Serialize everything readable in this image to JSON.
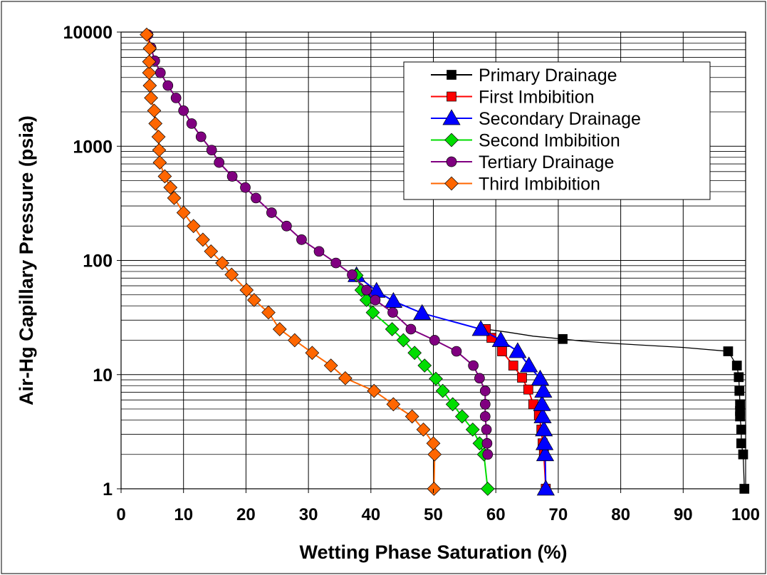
{
  "chart_data": {
    "type": "line",
    "title": "",
    "xlabel": "Wetting Phase Saturation (%)",
    "ylabel": "Air-Hg Capillary Pressure (psia)",
    "xlim": [
      0,
      100
    ],
    "ylim": [
      1,
      10000
    ],
    "yscale": "log",
    "x_ticks": [
      "0",
      "10",
      "20",
      "30",
      "40",
      "50",
      "60",
      "70",
      "80",
      "90",
      "100"
    ],
    "y_ticks": [
      "1",
      "10",
      "100",
      "1000",
      "10000"
    ],
    "grid": true,
    "legend_position": "top-right",
    "series": [
      {
        "name": "Primary Drainage",
        "color": "#000000",
        "marker": "square",
        "points": [
          [
            99.8,
            1
          ],
          [
            99.6,
            2
          ],
          [
            99.3,
            2.5
          ],
          [
            99.3,
            3.3
          ],
          [
            99.1,
            4.3
          ],
          [
            99.1,
            4.8
          ],
          [
            99.1,
            5.5
          ],
          [
            99.0,
            7.2
          ],
          [
            98.9,
            9.5
          ],
          [
            98.6,
            12
          ],
          [
            97.2,
            16
          ],
          [
            90,
            17.3
          ],
          [
            80,
            18.6
          ],
          [
            74,
            19.6
          ],
          [
            70.7,
            20.5
          ],
          [
            66,
            21.7
          ],
          [
            62,
            23.5
          ],
          [
            58.4,
            25
          ]
        ]
      },
      {
        "name": "First Imbibition",
        "color": "#ff0000",
        "marker": "square",
        "points": [
          [
            58.4,
            25
          ],
          [
            59.3,
            21
          ],
          [
            61.0,
            16
          ],
          [
            62.8,
            12
          ],
          [
            64.2,
            9.4
          ],
          [
            65.2,
            7.4
          ],
          [
            66.0,
            5.5
          ],
          [
            66.9,
            4.4
          ],
          [
            67.3,
            3.3
          ],
          [
            67.5,
            2.5
          ],
          [
            67.7,
            2
          ],
          [
            68.0,
            1
          ]
        ]
      },
      {
        "name": "Secondary Drainage",
        "color": "#0000ff",
        "marker": "triangle",
        "points": [
          [
            68.0,
            1
          ],
          [
            67.9,
            2
          ],
          [
            67.8,
            2.5
          ],
          [
            67.7,
            3.3
          ],
          [
            67.5,
            4.3
          ],
          [
            67.4,
            5.5
          ],
          [
            67.6,
            7.2
          ],
          [
            67.1,
            9.2
          ],
          [
            65.3,
            12
          ],
          [
            63.5,
            16
          ],
          [
            60.8,
            20
          ],
          [
            57.6,
            25
          ],
          [
            48.2,
            34.5
          ],
          [
            43.6,
            44
          ],
          [
            40.9,
            54
          ],
          [
            37.7,
            74
          ]
        ]
      },
      {
        "name": "Second Imbibition",
        "color": "#00dd00",
        "marker": "diamond",
        "points": [
          [
            37.7,
            74
          ],
          [
            38.5,
            55
          ],
          [
            39.3,
            45
          ],
          [
            40.3,
            35
          ],
          [
            43.4,
            25
          ],
          [
            45.2,
            20
          ],
          [
            47.0,
            15.5
          ],
          [
            48.6,
            12
          ],
          [
            50.4,
            9.2
          ],
          [
            51.5,
            7.2
          ],
          [
            53.1,
            5.5
          ],
          [
            54.6,
            4.3
          ],
          [
            56.3,
            3.3
          ],
          [
            57.4,
            2.5
          ],
          [
            58.1,
            2
          ],
          [
            58.7,
            1
          ]
        ]
      },
      {
        "name": "Tertiary Drainage",
        "color": "#800080",
        "marker": "circle",
        "points": [
          [
            58.7,
            2
          ],
          [
            58.6,
            2.5
          ],
          [
            58.5,
            3.3
          ],
          [
            58.3,
            4.3
          ],
          [
            58.3,
            5.5
          ],
          [
            58.3,
            7.2
          ],
          [
            57.4,
            9.3
          ],
          [
            56.4,
            12
          ],
          [
            53.7,
            16
          ],
          [
            50.2,
            20
          ],
          [
            46.4,
            25
          ],
          [
            43.5,
            35
          ],
          [
            40.7,
            45
          ],
          [
            39.3,
            55
          ],
          [
            37.0,
            75
          ],
          [
            34.4,
            95
          ],
          [
            31.7,
            120
          ],
          [
            28.9,
            152
          ],
          [
            26.5,
            200
          ],
          [
            24.1,
            262
          ],
          [
            21.6,
            352
          ],
          [
            19.9,
            435
          ],
          [
            17.8,
            545
          ],
          [
            15.7,
            720
          ],
          [
            14.5,
            925
          ],
          [
            12.8,
            1210
          ],
          [
            11.3,
            1580
          ],
          [
            10.0,
            2050
          ],
          [
            8.8,
            2650
          ],
          [
            7.5,
            3400
          ],
          [
            6.3,
            4400
          ],
          [
            5.4,
            5600
          ],
          [
            4.8,
            7300
          ],
          [
            4.3,
            9500
          ]
        ]
      },
      {
        "name": "Third Imbibition",
        "color": "#ff6600",
        "marker": "diamond",
        "points": [
          [
            50.1,
            1
          ],
          [
            50.2,
            2
          ],
          [
            50.0,
            2.5
          ],
          [
            48.4,
            3.3
          ],
          [
            46.6,
            4.3
          ],
          [
            43.6,
            5.5
          ],
          [
            40.5,
            7.2
          ],
          [
            35.9,
            9.3
          ],
          [
            33.6,
            12
          ],
          [
            30.6,
            15.5
          ],
          [
            27.8,
            20
          ],
          [
            25.4,
            25
          ],
          [
            23.6,
            35
          ],
          [
            21.3,
            45
          ],
          [
            20.1,
            55
          ],
          [
            17.7,
            75
          ],
          [
            16.2,
            95
          ],
          [
            14.4,
            120
          ],
          [
            13.1,
            152
          ],
          [
            11.6,
            200
          ],
          [
            10.0,
            262
          ],
          [
            8.5,
            352
          ],
          [
            7.9,
            435
          ],
          [
            7.0,
            545
          ],
          [
            6.2,
            720
          ],
          [
            6.1,
            925
          ],
          [
            6.0,
            1210
          ],
          [
            5.5,
            1580
          ],
          [
            5.3,
            2050
          ],
          [
            4.8,
            2650
          ],
          [
            4.6,
            3400
          ],
          [
            4.5,
            4400
          ],
          [
            4.5,
            5500
          ],
          [
            4.6,
            7200
          ],
          [
            4.1,
            9500
          ]
        ]
      }
    ]
  }
}
